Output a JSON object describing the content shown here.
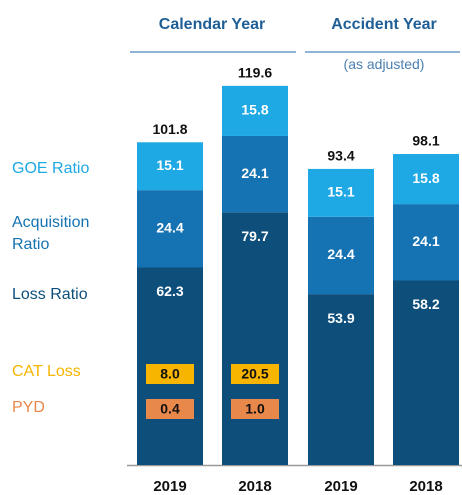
{
  "chart_data": {
    "type": "bar",
    "stacked": true,
    "categories": [
      "2019",
      "2018",
      "2019",
      "2018"
    ],
    "groups": [
      {
        "label": "Calendar Year",
        "categories": [
          0,
          1
        ]
      },
      {
        "label": "Accident Year",
        "sublabel": "(as adjusted)",
        "categories": [
          2,
          3
        ]
      }
    ],
    "series": [
      {
        "name": "Loss Ratio",
        "color": "#0d4e7b",
        "values": [
          62.3,
          79.7,
          53.9,
          58.2
        ]
      },
      {
        "name": "Acquisition Ratio",
        "color": "#1573b3",
        "values": [
          24.4,
          24.1,
          24.4,
          24.1
        ]
      },
      {
        "name": "GOE Ratio",
        "color": "#1ea8e4",
        "values": [
          15.1,
          15.8,
          15.1,
          15.8
        ]
      }
    ],
    "totals": [
      101.8,
      119.6,
      93.4,
      98.1
    ],
    "badges": [
      {
        "name": "CAT Loss",
        "color": "#f7b500",
        "values": [
          8.0,
          20.5,
          null,
          null
        ],
        "value_labels": [
          "8.0",
          "20.5",
          null,
          null
        ]
      },
      {
        "name": "PYD",
        "color": "#e8884a",
        "values": [
          0.4,
          1.0,
          null,
          null
        ],
        "value_labels": [
          "0.4",
          "1.0",
          null,
          null
        ]
      }
    ]
  }
}
